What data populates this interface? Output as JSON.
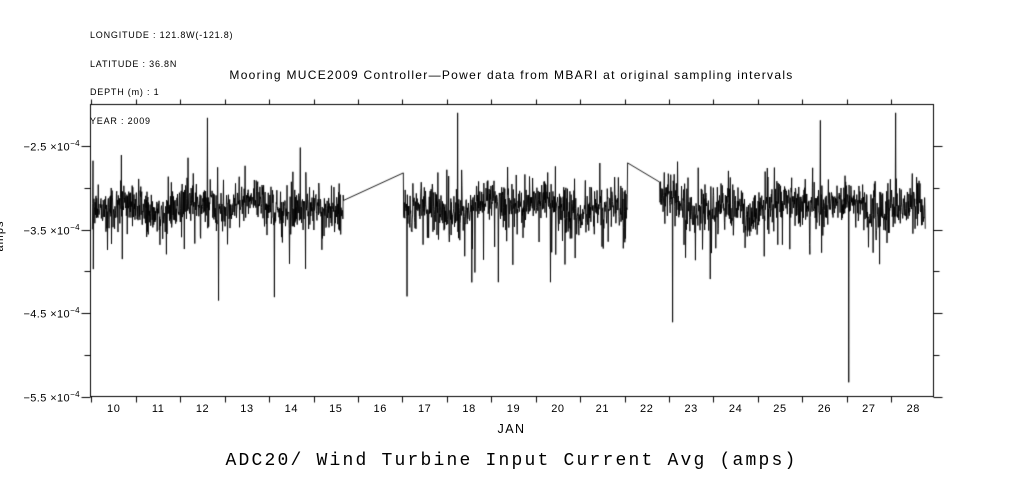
{
  "meta": {
    "lines": [
      "LONGITUDE : 121.8W(-121.8)",
      "LATITUDE : 36.8N",
      "DEPTH (m) : 1",
      "YEAR : 2009"
    ]
  },
  "chart_data": {
    "type": "line",
    "title": "Mooring MUCE2009 Controller—Power data from MBARI at original sampling intervals",
    "bottom_title": "ADC20/ Wind Turbine Input Current Avg (amps)",
    "line_color": "#000000",
    "background": "#ffffff",
    "grid": false,
    "legend": "none",
    "x_axis": {
      "month_label": "JAN",
      "min_day": 9.9775,
      "max_day": 28.955,
      "tick_days": [
        10,
        11,
        12,
        13,
        14,
        15,
        16,
        17,
        18,
        19,
        20,
        21,
        22,
        23,
        24,
        25,
        26,
        27,
        28
      ],
      "day_labels": [
        "10",
        "11",
        "12",
        "13",
        "14",
        "15",
        "16",
        "17",
        "18",
        "19",
        "20",
        "21",
        "22",
        "23",
        "24",
        "25",
        "26",
        "27",
        "28"
      ]
    },
    "y_axis": {
      "unit": "amps",
      "min": -0.00055,
      "max": -0.0002,
      "times": " ×10",
      "major_ticks": [
        {
          "mantissa": "−2.5",
          "exponent": "−4",
          "value": -0.00025
        },
        {
          "mantissa": "−3.5",
          "exponent": "−4",
          "value": -0.00035
        },
        {
          "mantissa": "−4.5",
          "exponent": "−4",
          "value": -0.00045
        },
        {
          "mantissa": "−5.5",
          "exponent": "−4",
          "value": -0.00055
        }
      ],
      "minor_tick_values": [
        -0.0003,
        -0.0004,
        -0.0005
      ]
    },
    "series": {
      "name": "ADC20 Wind Turbine Input Current Avg",
      "unit": "amps",
      "mean": -0.000322,
      "noise_halfband": 3.6e-05,
      "clamp_high": -0.000226,
      "soft_low": -0.00044,
      "samples_per_day": 144,
      "seed": 20091,
      "segments": [
        {
          "start_day": 10.02,
          "end_day": 15.67,
          "end_value": -0.000315
        },
        {
          "start_day": 17.02,
          "end_day": 22.07,
          "start_value": -0.000282,
          "end_value": -0.00027
        },
        {
          "start_day": 22.79,
          "end_day": 28.77,
          "start_value": -0.000293
        }
      ],
      "gap_note": "gaps bridged by straight connector lines",
      "spikes": [
        {
          "day": 12.61,
          "value": -0.000216
        },
        {
          "day": 12.86,
          "value": -0.000435
        },
        {
          "day": 14.82,
          "value": -0.000397
        },
        {
          "day": 17.1,
          "value": -0.00043
        },
        {
          "day": 18.24,
          "value": -0.00021
        },
        {
          "day": 19.16,
          "value": -0.000413
        },
        {
          "day": 20.33,
          "value": -0.000413
        },
        {
          "day": 23.08,
          "value": -0.000461
        },
        {
          "day": 26.41,
          "value": -0.000219
        },
        {
          "day": 27.05,
          "value": -0.000533
        },
        {
          "day": 28.1,
          "value": -0.00021
        }
      ]
    }
  }
}
